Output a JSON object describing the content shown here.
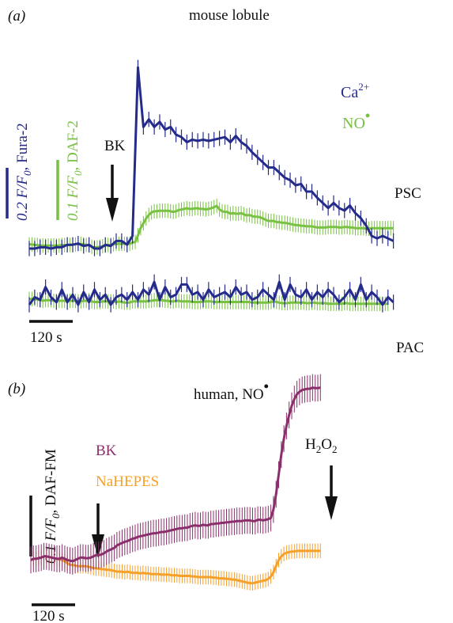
{
  "colors": {
    "ca": "#252b8b",
    "no": "#79c142",
    "bk": "#8a2f6c",
    "nahepes": "#f7a029",
    "scale": "#111111"
  },
  "chart_data": [
    {
      "type": "line",
      "panel_label": "(a)",
      "title": "mouse lobule",
      "stimulus": "BK",
      "scale_bars": {
        "time": "120 s",
        "fura": {
          "italic": "0.2 F/F",
          "sub": "0",
          "rest": ", Fura-2"
        },
        "daf": {
          "italic": "0.1 F/F",
          "sub": "0",
          "rest": ", DAF-2"
        }
      },
      "legend": [
        {
          "text": "Ca",
          "sup": "2+"
        },
        {
          "text": "NO",
          "sup": "•"
        }
      ],
      "x_unit": "s",
      "groups": [
        {
          "label": "PSC",
          "series": [
            {
              "name": "Ca2+",
              "unit": "F/F0 (Fura-2)",
              "x0": 0,
              "dx": 15,
              "values": [
                0.0,
                0.0,
                0.005,
                0.005,
                0.0,
                0.005,
                0.005,
                0.015,
                0.015,
                0.02,
                0.01,
                0.015,
                0.0,
                0.0,
                0.015,
                0.01,
                0.03,
                0.03,
                0.015,
                0.05,
                0.715,
                0.48,
                0.51,
                0.48,
                0.5,
                0.47,
                0.48,
                0.45,
                0.44,
                0.42,
                0.43,
                0.425,
                0.43,
                0.425,
                0.43,
                0.435,
                0.44,
                0.42,
                0.445,
                0.42,
                0.405,
                0.38,
                0.36,
                0.34,
                0.32,
                0.32,
                0.3,
                0.28,
                0.27,
                0.25,
                0.255,
                0.225,
                0.225,
                0.2,
                0.18,
                0.16,
                0.18,
                0.16,
                0.15,
                0.17,
                0.14,
                0.12,
                0.09,
                0.05,
                0.04,
                0.05,
                0.04,
                0.03
              ],
              "error": 0.03
            },
            {
              "name": "NO•",
              "unit": "F/F0 (DAF-2)",
              "x0": 0,
              "dx": 7.5,
              "values": [
                0.003,
                0.003,
                0.002,
                0.002,
                0.001,
                0.001,
                0.001,
                0.001,
                0.001,
                0.001,
                0.001,
                0.001,
                0.002,
                0.002,
                0.002,
                0.002,
                0.003,
                0.003,
                0.004,
                0.004,
                0.003,
                0.002,
                0.001,
                -0.001,
                -0.002,
                -0.002,
                -0.001,
                0.0,
                0.001,
                0.002,
                0.002,
                0.003,
                0.004,
                0.004,
                0.004,
                0.004,
                0.004,
                0.004,
                0.006,
                0.007,
                0.018,
                0.03,
                0.038,
                0.046,
                0.052,
                0.056,
                0.058,
                0.058,
                0.059,
                0.059,
                0.059,
                0.059,
                0.058,
                0.057,
                0.058,
                0.06,
                0.061,
                0.062,
                0.063,
                0.062,
                0.062,
                0.063,
                0.063,
                0.062,
                0.062,
                0.061,
                0.062,
                0.063,
                0.065,
                0.067,
                0.061,
                0.058,
                0.057,
                0.057,
                0.054,
                0.055,
                0.054,
                0.054,
                0.055,
                0.053,
                0.051,
                0.052,
                0.05,
                0.049,
                0.049,
                0.048,
                0.046,
                0.044,
                0.042,
                0.042,
                0.042,
                0.04,
                0.04,
                0.039,
                0.039,
                0.038,
                0.037,
                0.036,
                0.035,
                0.035,
                0.034,
                0.034,
                0.033,
                0.033,
                0.033,
                0.032,
                0.031,
                0.031,
                0.031,
                0.031,
                0.032,
                0.032,
                0.032,
                0.032,
                0.031,
                0.031,
                0.032,
                0.032,
                0.031,
                0.031,
                0.03,
                0.03,
                0.03,
                0.03,
                0.029,
                0.029,
                0.03,
                0.03,
                0.03,
                0.03,
                0.03,
                0.03,
                0.03,
                0.03,
                0.03
              ],
              "error": 0.012
            }
          ]
        },
        {
          "label": "PAC",
          "series": [
            {
              "name": "Ca2+",
              "unit": "F/F0 (Fura-2)",
              "x0": 0,
              "dx": 15,
              "values": [
                0.0,
                0.03,
                0.02,
                0.07,
                0.03,
                0.01,
                0.06,
                0.01,
                0.04,
                0.0,
                0.05,
                0.01,
                0.06,
                0.02,
                0.04,
                0.0,
                0.03,
                0.04,
                0.02,
                0.05,
                0.02,
                0.06,
                0.04,
                0.09,
                0.02,
                0.07,
                0.03,
                0.04,
                0.08,
                0.08,
                0.04,
                0.05,
                0.02,
                0.06,
                0.03,
                0.04,
                0.05,
                0.03,
                0.07,
                0.04,
                0.05,
                0.02,
                0.03,
                0.06,
                0.04,
                0.02,
                0.09,
                0.02,
                0.08,
                0.04,
                0.03,
                0.06,
                0.02,
                0.05,
                0.03,
                0.06,
                0.04,
                0.01,
                0.03,
                0.06,
                0.02,
                0.08,
                0.02,
                0.05,
                0.03,
                0.0,
                0.03,
                0.01
              ],
              "error": 0.03
            },
            {
              "name": "NO•",
              "unit": "F/F0 (DAF-2)",
              "x0": 0,
              "dx": 7.5,
              "values": [
                0.003,
                0.003,
                0.003,
                0.002,
                0.001,
                0.0,
                0.001,
                0.001,
                0.001,
                0.0,
                0.0,
                0.0,
                0.0,
                0.0,
                0.0,
                0.0,
                0.0,
                0.0,
                -0.001,
                -0.001,
                0.0,
                0.0,
                0.001,
                -0.001,
                -0.002,
                -0.002,
                -0.002,
                -0.001,
                -0.001,
                -0.001,
                -0.001,
                -0.001,
                -0.002,
                -0.001,
                -0.002,
                -0.003,
                -0.003,
                -0.003,
                -0.001,
                -0.001,
                -0.001,
                -0.001,
                -0.001,
                -0.001,
                0.0,
                0.0,
                0.001,
                0.001,
                0.001,
                0.001,
                0.0,
                0.0,
                -0.001,
                -0.001,
                0.0,
                0.0,
                -0.001,
                -0.001,
                -0.001,
                -0.001,
                -0.002,
                -0.002,
                -0.002,
                -0.002,
                -0.001,
                -0.001,
                -0.001,
                -0.001,
                -0.002,
                -0.002,
                -0.002,
                -0.002,
                -0.002,
                -0.002,
                -0.002,
                -0.002,
                -0.002,
                -0.002,
                -0.002,
                -0.002,
                -0.002,
                -0.002,
                -0.003,
                -0.003,
                -0.003,
                -0.003,
                -0.003,
                -0.003,
                -0.003,
                -0.002,
                -0.001,
                -0.002,
                -0.003,
                -0.004,
                -0.004,
                -0.004,
                -0.003,
                -0.003,
                -0.003,
                -0.003,
                -0.003,
                -0.003,
                -0.004,
                -0.004,
                -0.003,
                -0.003,
                -0.004,
                -0.004,
                -0.004,
                -0.004,
                -0.005,
                -0.005,
                -0.005,
                -0.005,
                -0.005,
                -0.005,
                -0.004,
                -0.004,
                -0.005,
                -0.005,
                -0.005,
                -0.005,
                -0.005,
                -0.005,
                -0.005,
                -0.005,
                -0.005,
                -0.005,
                -0.005,
                -0.005,
                -0.005,
                -0.005,
                -0.005
              ],
              "error": 0.012
            }
          ]
        }
      ]
    },
    {
      "type": "line",
      "panel_label": "(b)",
      "title": {
        "text": "human, NO",
        "sup": "•"
      },
      "stimuli": [
        {
          "text": "BK"
        },
        {
          "text": "H",
          "sub1": "2",
          "mid": "O",
          "sub2": "2"
        }
      ],
      "scale_bars": {
        "time": "120 s",
        "daf": {
          "italic": "0.1 F/F",
          "sub": "0",
          "rest": ", DAF-FM"
        }
      },
      "legend": [
        "BK",
        "NaHEPES"
      ],
      "x_unit": "s",
      "series": [
        {
          "name": "BK",
          "unit": "F/F0 (DAF-FM)",
          "x0": 0,
          "dx": 7.2,
          "values": [
            0.002,
            0.004,
            0.004,
            0.005,
            0.006,
            0.008,
            0.008,
            0.007,
            0.006,
            0.005,
            0.004,
            0.004,
            0.006,
            0.004,
            0.002,
            0.001,
            0.0,
            0.002,
            0.004,
            0.006,
            0.006,
            0.005,
            0.005,
            0.006,
            0.008,
            0.01,
            0.01,
            0.011,
            0.013,
            0.016,
            0.018,
            0.02,
            0.022,
            0.026,
            0.028,
            0.03,
            0.032,
            0.033,
            0.035,
            0.037,
            0.038,
            0.04,
            0.041,
            0.042,
            0.043,
            0.044,
            0.045,
            0.046,
            0.046,
            0.047,
            0.048,
            0.048,
            0.049,
            0.05,
            0.051,
            0.052,
            0.053,
            0.054,
            0.054,
            0.055,
            0.055,
            0.057,
            0.058,
            0.059,
            0.058,
            0.058,
            0.06,
            0.059,
            0.059,
            0.061,
            0.061,
            0.062,
            0.062,
            0.063,
            0.063,
            0.064,
            0.064,
            0.065,
            0.065,
            0.066,
            0.066,
            0.066,
            0.067,
            0.067,
            0.067,
            0.066,
            0.066,
            0.068,
            0.068,
            0.067,
            0.068,
            0.069,
            0.071,
            0.085,
            0.11,
            0.142,
            0.175,
            0.201,
            0.222,
            0.24,
            0.255,
            0.266,
            0.274,
            0.278,
            0.281,
            0.282,
            0.283,
            0.283,
            0.285,
            0.284,
            0.284,
            0.285
          ],
          "error": 0.022
        },
        {
          "name": "NaHEPES",
          "unit": "F/F0 (DAF-FM)",
          "x0": 0,
          "dx": 7.2,
          "values": [
            0.002,
            0.004,
            0.004,
            0.005,
            0.006,
            0.008,
            0.008,
            0.007,
            0.006,
            0.005,
            0.004,
            0.003,
            0.002,
            0.0,
            -0.003,
            -0.006,
            -0.006,
            -0.007,
            -0.008,
            -0.008,
            -0.008,
            -0.008,
            -0.009,
            -0.01,
            -0.011,
            -0.012,
            -0.012,
            -0.013,
            -0.013,
            -0.014,
            -0.014,
            -0.015,
            -0.016,
            -0.017,
            -0.017,
            -0.017,
            -0.018,
            -0.017,
            -0.018,
            -0.019,
            -0.019,
            -0.019,
            -0.02,
            -0.019,
            -0.02,
            -0.02,
            -0.021,
            -0.021,
            -0.021,
            -0.021,
            -0.022,
            -0.022,
            -0.022,
            -0.022,
            -0.023,
            -0.023,
            -0.023,
            -0.024,
            -0.024,
            -0.024,
            -0.024,
            -0.024,
            -0.025,
            -0.025,
            -0.026,
            -0.026,
            -0.026,
            -0.026,
            -0.026,
            -0.026,
            -0.027,
            -0.027,
            -0.028,
            -0.028,
            -0.028,
            -0.029,
            -0.029,
            -0.03,
            -0.03,
            -0.031,
            -0.032,
            -0.033,
            -0.034,
            -0.035,
            -0.036,
            -0.036,
            -0.035,
            -0.034,
            -0.033,
            -0.032,
            -0.031,
            -0.029,
            -0.025,
            -0.018,
            -0.008,
            0.002,
            0.008,
            0.012,
            0.014,
            0.015,
            0.016,
            0.016,
            0.017,
            0.017,
            0.017,
            0.017,
            0.017,
            0.017,
            0.017,
            0.017,
            0.017,
            0.017
          ],
          "error": 0.012
        }
      ]
    }
  ]
}
